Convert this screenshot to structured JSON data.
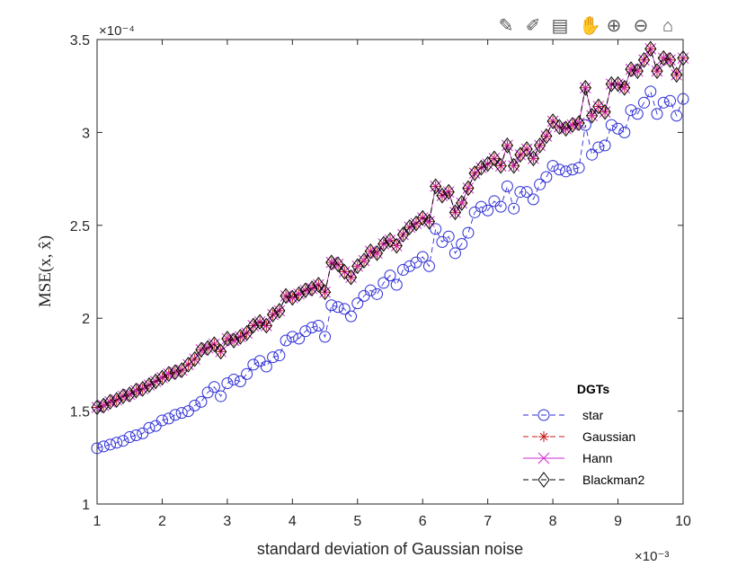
{
  "toolbar": {
    "buttons": [
      {
        "name": "edit-plot-icon",
        "glyph": "✎"
      },
      {
        "name": "brush-icon",
        "glyph": "✐"
      },
      {
        "name": "data-tips-icon",
        "glyph": "▤"
      },
      {
        "name": "pan-hand-icon",
        "glyph": "✋"
      },
      {
        "name": "zoom-in-icon",
        "glyph": "⊕"
      },
      {
        "name": "zoom-out-icon",
        "glyph": "⊖"
      },
      {
        "name": "home-icon",
        "glyph": "⌂"
      }
    ]
  },
  "chart_data": {
    "type": "line",
    "xlabel": "standard deviation of Gaussian noise",
    "ylabel": "MSE(x, x̂)",
    "x_exponent": "×10⁻³",
    "y_exponent": "×10⁻⁴",
    "xlim": [
      1,
      10
    ],
    "ylim": [
      1,
      3.5
    ],
    "xticks": [
      "1",
      "2",
      "3",
      "4",
      "5",
      "6",
      "7",
      "8",
      "9",
      "10"
    ],
    "yticks": [
      "1",
      "1.5",
      "2",
      "2.5",
      "3",
      "3.5"
    ],
    "legend": {
      "title": "DGTs",
      "position": "lower-right"
    },
    "x": [
      1.0,
      1.1,
      1.2,
      1.3,
      1.4,
      1.5,
      1.6,
      1.7,
      1.8,
      1.9,
      2.0,
      2.1,
      2.2,
      2.3,
      2.4,
      2.5,
      2.6,
      2.7,
      2.8,
      2.9,
      3.0,
      3.1,
      3.2,
      3.3,
      3.4,
      3.5,
      3.6,
      3.7,
      3.8,
      3.9,
      4.0,
      4.1,
      4.2,
      4.3,
      4.4,
      4.5,
      4.6,
      4.7,
      4.8,
      4.9,
      5.0,
      5.1,
      5.2,
      5.3,
      5.4,
      5.5,
      5.6,
      5.7,
      5.8,
      5.9,
      6.0,
      6.1,
      6.2,
      6.3,
      6.4,
      6.5,
      6.6,
      6.7,
      6.8,
      6.9,
      7.0,
      7.1,
      7.2,
      7.3,
      7.4,
      7.5,
      7.6,
      7.7,
      7.8,
      7.9,
      8.0,
      8.1,
      8.2,
      8.3,
      8.4,
      8.5,
      8.6,
      8.7,
      8.8,
      8.9,
      9.0,
      9.1,
      9.2,
      9.3,
      9.4,
      9.5,
      9.6,
      9.7,
      9.8,
      9.9,
      10.0
    ],
    "series": [
      {
        "name": "star",
        "color": "#2b2bd6",
        "marker": "circle",
        "values": [
          1.3,
          1.31,
          1.32,
          1.33,
          1.34,
          1.36,
          1.37,
          1.38,
          1.41,
          1.42,
          1.45,
          1.46,
          1.48,
          1.49,
          1.5,
          1.53,
          1.55,
          1.6,
          1.63,
          1.58,
          1.65,
          1.67,
          1.66,
          1.7,
          1.75,
          1.77,
          1.74,
          1.79,
          1.8,
          1.88,
          1.9,
          1.89,
          1.93,
          1.95,
          1.96,
          1.9,
          2.07,
          2.06,
          2.05,
          2.01,
          2.08,
          2.12,
          2.15,
          2.13,
          2.19,
          2.23,
          2.18,
          2.26,
          2.28,
          2.3,
          2.33,
          2.28,
          2.48,
          2.41,
          2.44,
          2.35,
          2.4,
          2.46,
          2.57,
          2.6,
          2.58,
          2.63,
          2.6,
          2.71,
          2.59,
          2.68,
          2.68,
          2.64,
          2.72,
          2.76,
          2.82,
          2.8,
          2.79,
          2.8,
          2.81,
          3.04,
          2.88,
          2.92,
          2.93,
          3.04,
          3.02,
          3.0,
          3.12,
          3.1,
          3.16,
          3.22,
          3.1,
          3.16,
          3.17,
          3.09,
          3.18
        ]
      },
      {
        "name": "Gaussian",
        "color": "#c41a1a",
        "marker": "asterisk",
        "values": [
          1.52,
          1.53,
          1.55,
          1.56,
          1.58,
          1.59,
          1.61,
          1.62,
          1.64,
          1.66,
          1.68,
          1.7,
          1.71,
          1.72,
          1.75,
          1.78,
          1.83,
          1.84,
          1.86,
          1.82,
          1.89,
          1.88,
          1.9,
          1.92,
          1.96,
          1.98,
          1.96,
          2.02,
          2.04,
          2.12,
          2.11,
          2.13,
          2.15,
          2.16,
          2.18,
          2.14,
          2.3,
          2.29,
          2.25,
          2.22,
          2.28,
          2.31,
          2.36,
          2.35,
          2.4,
          2.42,
          2.39,
          2.45,
          2.49,
          2.51,
          2.54,
          2.52,
          2.71,
          2.66,
          2.68,
          2.57,
          2.62,
          2.7,
          2.78,
          2.81,
          2.83,
          2.86,
          2.82,
          2.93,
          2.82,
          2.88,
          2.91,
          2.86,
          2.93,
          2.98,
          3.06,
          3.03,
          3.02,
          3.04,
          3.05,
          3.24,
          3.09,
          3.14,
          3.11,
          3.26,
          3.26,
          3.24,
          3.34,
          3.33,
          3.39,
          3.45,
          3.33,
          3.4,
          3.39,
          3.31,
          3.4
        ]
      },
      {
        "name": "Hann",
        "color": "#d12ad1",
        "marker": "x",
        "values": [
          1.52,
          1.53,
          1.55,
          1.56,
          1.58,
          1.59,
          1.61,
          1.62,
          1.64,
          1.66,
          1.68,
          1.7,
          1.71,
          1.72,
          1.75,
          1.78,
          1.83,
          1.84,
          1.86,
          1.82,
          1.89,
          1.88,
          1.9,
          1.92,
          1.96,
          1.98,
          1.96,
          2.02,
          2.04,
          2.12,
          2.11,
          2.13,
          2.15,
          2.16,
          2.18,
          2.14,
          2.3,
          2.29,
          2.25,
          2.22,
          2.28,
          2.31,
          2.36,
          2.35,
          2.4,
          2.42,
          2.39,
          2.45,
          2.49,
          2.51,
          2.54,
          2.52,
          2.71,
          2.66,
          2.68,
          2.57,
          2.62,
          2.7,
          2.78,
          2.81,
          2.83,
          2.86,
          2.82,
          2.93,
          2.82,
          2.88,
          2.91,
          2.86,
          2.93,
          2.98,
          3.06,
          3.03,
          3.02,
          3.04,
          3.05,
          3.24,
          3.09,
          3.14,
          3.11,
          3.26,
          3.26,
          3.24,
          3.34,
          3.33,
          3.39,
          3.45,
          3.33,
          3.4,
          3.39,
          3.31,
          3.4
        ]
      },
      {
        "name": "Blackman2",
        "color": "#000000",
        "marker": "diamond",
        "values": [
          1.52,
          1.53,
          1.55,
          1.56,
          1.58,
          1.59,
          1.61,
          1.62,
          1.64,
          1.66,
          1.68,
          1.7,
          1.71,
          1.72,
          1.75,
          1.78,
          1.83,
          1.84,
          1.86,
          1.82,
          1.89,
          1.88,
          1.9,
          1.92,
          1.96,
          1.98,
          1.96,
          2.02,
          2.04,
          2.12,
          2.11,
          2.13,
          2.15,
          2.16,
          2.18,
          2.14,
          2.3,
          2.29,
          2.25,
          2.22,
          2.28,
          2.31,
          2.36,
          2.35,
          2.4,
          2.42,
          2.39,
          2.45,
          2.49,
          2.51,
          2.54,
          2.52,
          2.71,
          2.66,
          2.68,
          2.57,
          2.62,
          2.7,
          2.78,
          2.81,
          2.83,
          2.86,
          2.82,
          2.93,
          2.82,
          2.88,
          2.91,
          2.86,
          2.93,
          2.98,
          3.06,
          3.03,
          3.02,
          3.04,
          3.05,
          3.24,
          3.09,
          3.14,
          3.11,
          3.26,
          3.26,
          3.24,
          3.34,
          3.33,
          3.39,
          3.45,
          3.33,
          3.4,
          3.39,
          3.31,
          3.4
        ]
      }
    ]
  }
}
